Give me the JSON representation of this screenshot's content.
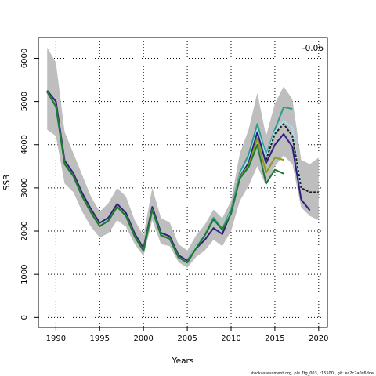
{
  "chart_data": {
    "type": "line",
    "xlabel": "Years",
    "ylabel": "SSB",
    "corner_label": "-0.06",
    "footer": "stockassessment.org, ple.7fg_003, r15500 , git: ec2c2a0c6dde",
    "xlim": [
      1988,
      2021
    ],
    "ylim": [
      -230,
      6480
    ],
    "x_ticks": [
      1990,
      1995,
      2000,
      2005,
      2010,
      2015,
      2020
    ],
    "y_ticks": [
      0,
      1000,
      2000,
      3000,
      4000,
      5000,
      6000
    ],
    "grid": true,
    "grid_style": "dotted",
    "confidence_band": {
      "color": "#bebebe",
      "x": [
        1989,
        1990,
        1991,
        1992,
        1993,
        1994,
        1995,
        1996,
        1997,
        1998,
        1999,
        2000,
        2001,
        2002,
        2003,
        2004,
        2005,
        2006,
        2007,
        2008,
        2009,
        2010,
        2011,
        2012,
        2013,
        2014,
        2015,
        2016,
        2017,
        2018,
        2019,
        2020
      ],
      "upper": [
        6250,
        5900,
        4300,
        3800,
        3300,
        2800,
        2450,
        2650,
        3000,
        2800,
        2250,
        1900,
        3000,
        2300,
        2200,
        1700,
        1550,
        1900,
        2150,
        2500,
        2300,
        2700,
        3800,
        4350,
        5200,
        4200,
        4950,
        5350,
        5050,
        3650,
        3550,
        3700
      ],
      "lower": [
        4350,
        4200,
        3100,
        2900,
        2450,
        2100,
        1850,
        1950,
        2250,
        2100,
        1700,
        1420,
        2250,
        1700,
        1650,
        1280,
        1150,
        1400,
        1550,
        1800,
        1650,
        2000,
        2700,
        3050,
        3500,
        3050,
        3500,
        3750,
        3550,
        2550,
        2350,
        2250
      ]
    },
    "series": [
      {
        "color": "#2a9d8f",
        "x": [
          1989,
          1990,
          1991,
          1992,
          1993,
          1994,
          1995,
          1996,
          1997,
          1998,
          1999,
          2000,
          2001,
          2002,
          2003,
          2004,
          2005,
          2006,
          2007,
          2008,
          2009,
          2010,
          2011,
          2012,
          2013,
          2014,
          2015,
          2016,
          2017
        ],
        "values": [
          5250,
          4950,
          3620,
          3330,
          2870,
          2500,
          2180,
          2300,
          2620,
          2410,
          1930,
          1600,
          2550,
          1960,
          1880,
          1440,
          1320,
          1660,
          1920,
          2310,
          2050,
          2500,
          3350,
          3770,
          4480,
          3760,
          4350,
          4870,
          4830
        ]
      },
      {
        "color": "#a8dcec",
        "x": [
          1989,
          1990,
          1991,
          1992,
          1993,
          1994,
          1995,
          1996,
          1997,
          1998,
          1999,
          2000,
          2001,
          2002,
          2003,
          2004,
          2005,
          2006,
          2007,
          2008,
          2009,
          2010,
          2011,
          2012,
          2013,
          2014,
          2015,
          2016,
          2017,
          2018
        ],
        "values": [
          5230,
          4980,
          3600,
          3320,
          2860,
          2490,
          2170,
          2290,
          2600,
          2390,
          1920,
          1590,
          2540,
          1950,
          1870,
          1430,
          1310,
          1650,
          1920,
          2250,
          2020,
          2450,
          3300,
          3650,
          4350,
          3700,
          4300,
          4550,
          4400,
          3000
        ]
      },
      {
        "color": "#2e1f7a",
        "x": [
          1989,
          1990,
          1991,
          1992,
          1993,
          1994,
          1995,
          1996,
          1997,
          1998,
          1999,
          2000,
          2001,
          2002,
          2003,
          2004,
          2005,
          2006,
          2007,
          2008,
          2009,
          2010,
          2011,
          2012,
          2013,
          2014,
          2015,
          2016,
          2017,
          2018,
          2019
        ],
        "values": [
          5250,
          5000,
          3630,
          3340,
          2880,
          2510,
          2190,
          2310,
          2630,
          2420,
          1940,
          1600,
          2560,
          1960,
          1880,
          1440,
          1310,
          1600,
          1800,
          2070,
          1930,
          2430,
          3260,
          3580,
          4290,
          3570,
          4000,
          4250,
          3950,
          2730,
          2480
        ]
      },
      {
        "color": "#1e1e1e",
        "dashed": true,
        "x": [
          2014,
          2015,
          2016,
          2017,
          2018,
          2019,
          2020
        ],
        "values": [
          3650,
          4250,
          4480,
          4200,
          3000,
          2900,
          2900
        ]
      },
      {
        "color": "#8a9a1e",
        "x": [
          1989,
          1990,
          1991,
          1992,
          1993,
          1994,
          1995,
          1996,
          1997,
          1998,
          1999,
          2000,
          2001,
          2002,
          2003,
          2004,
          2005,
          2006,
          2007,
          2008,
          2009,
          2010,
          2011,
          2012,
          2013,
          2014,
          2015,
          2016
        ],
        "values": [
          5230,
          4900,
          3560,
          3280,
          2810,
          2450,
          2120,
          2250,
          2570,
          2360,
          1880,
          1550,
          2500,
          1910,
          1830,
          1400,
          1280,
          1610,
          1910,
          2280,
          2040,
          2410,
          3250,
          3520,
          4150,
          3350,
          3700,
          3650
        ]
      },
      {
        "color": "#1a7a3a",
        "x": [
          1989,
          1990,
          1991,
          1992,
          1993,
          1994,
          1995,
          1996,
          1997,
          1998,
          1999,
          2000,
          2001,
          2002,
          2003,
          2004,
          2005,
          2006,
          2007,
          2008,
          2009,
          2010,
          2011,
          2012,
          2013,
          2014,
          2015,
          2016
        ],
        "values": [
          5220,
          4880,
          3550,
          3270,
          2800,
          2430,
          2110,
          2240,
          2560,
          2350,
          1870,
          1540,
          2490,
          1900,
          1820,
          1390,
          1270,
          1600,
          1900,
          2270,
          2030,
          2400,
          3220,
          3480,
          4000,
          3100,
          3420,
          3330
        ]
      }
    ]
  }
}
